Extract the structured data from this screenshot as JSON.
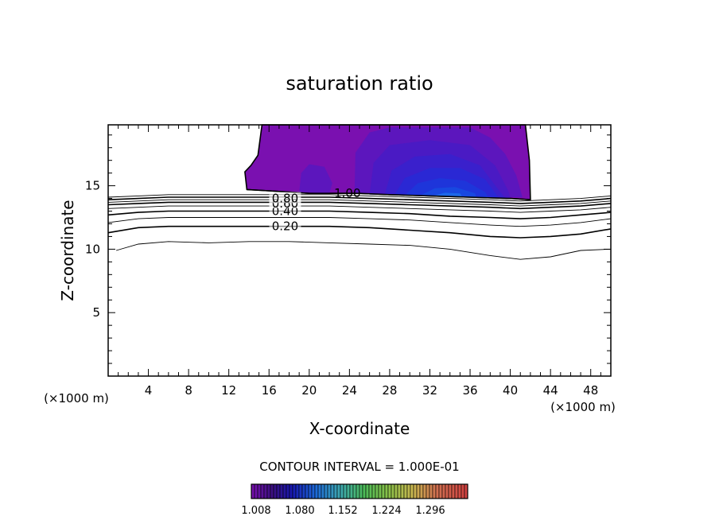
{
  "chart_data": {
    "type": "contour",
    "title": "saturation ratio",
    "xlabel": "X-coordinate",
    "ylabel": "Z-coordinate",
    "x_unit_left": "(×1000 m)",
    "x_unit_right": "(×1000 m)",
    "xlim": [
      0,
      50
    ],
    "ylim": [
      0,
      19.8
    ],
    "x_ticks": [
      4,
      8,
      12,
      16,
      20,
      24,
      28,
      32,
      36,
      40,
      44,
      48
    ],
    "y_ticks": [
      5,
      10,
      15
    ],
    "contour_interval_text": "CONTOUR INTERVAL = 1.000E-01",
    "line_contours": [
      {
        "level": 0.1,
        "label": "",
        "points": [
          [
            0.8,
            9.9
          ],
          [
            3,
            10.4
          ],
          [
            6,
            10.6
          ],
          [
            10,
            10.5
          ],
          [
            14,
            10.6
          ],
          [
            18,
            10.6
          ],
          [
            22,
            10.5
          ],
          [
            26,
            10.4
          ],
          [
            30,
            10.3
          ],
          [
            34,
            10.0
          ],
          [
            38,
            9.5
          ],
          [
            41,
            9.2
          ],
          [
            44,
            9.4
          ],
          [
            47,
            9.9
          ],
          [
            50,
            10.0
          ]
        ]
      },
      {
        "level": 0.2,
        "label": "0.20",
        "label_x": 17.6,
        "label_y": 11.8,
        "points": [
          [
            0,
            11.3
          ],
          [
            3,
            11.7
          ],
          [
            6,
            11.8
          ],
          [
            10,
            11.8
          ],
          [
            14,
            11.8
          ],
          [
            18,
            11.8
          ],
          [
            22,
            11.8
          ],
          [
            26,
            11.7
          ],
          [
            30,
            11.5
          ],
          [
            34,
            11.3
          ],
          [
            38,
            11.0
          ],
          [
            41,
            10.9
          ],
          [
            44,
            11.0
          ],
          [
            47,
            11.2
          ],
          [
            50,
            11.6
          ]
        ]
      },
      {
        "level": 0.3,
        "label": "",
        "points": [
          [
            0,
            12.1
          ],
          [
            3,
            12.4
          ],
          [
            6,
            12.5
          ],
          [
            10,
            12.5
          ],
          [
            14,
            12.5
          ],
          [
            18,
            12.5
          ],
          [
            22,
            12.5
          ],
          [
            26,
            12.4
          ],
          [
            30,
            12.3
          ],
          [
            34,
            12.1
          ],
          [
            38,
            11.9
          ],
          [
            41,
            11.8
          ],
          [
            44,
            11.9
          ],
          [
            47,
            12.1
          ],
          [
            50,
            12.4
          ]
        ]
      },
      {
        "level": 0.4,
        "label": "0.40",
        "label_x": 17.6,
        "label_y": 13.0,
        "points": [
          [
            0,
            12.7
          ],
          [
            3,
            12.9
          ],
          [
            6,
            13.0
          ],
          [
            10,
            13.0
          ],
          [
            14,
            13.0
          ],
          [
            18,
            13.0
          ],
          [
            22,
            13.0
          ],
          [
            26,
            12.9
          ],
          [
            30,
            12.8
          ],
          [
            34,
            12.6
          ],
          [
            38,
            12.5
          ],
          [
            41,
            12.4
          ],
          [
            44,
            12.5
          ],
          [
            47,
            12.7
          ],
          [
            50,
            12.9
          ]
        ]
      },
      {
        "level": 0.5,
        "label": "",
        "points": [
          [
            0,
            13.2
          ],
          [
            3,
            13.3
          ],
          [
            6,
            13.4
          ],
          [
            10,
            13.4
          ],
          [
            14,
            13.4
          ],
          [
            18,
            13.4
          ],
          [
            22,
            13.4
          ],
          [
            26,
            13.3
          ],
          [
            30,
            13.2
          ],
          [
            34,
            13.1
          ],
          [
            38,
            13.0
          ],
          [
            41,
            12.9
          ],
          [
            44,
            13.0
          ],
          [
            47,
            13.1
          ],
          [
            50,
            13.3
          ]
        ]
      },
      {
        "level": 0.6,
        "label": "0.60",
        "label_x": 17.6,
        "label_y": 13.6,
        "points": [
          [
            0,
            13.5
          ],
          [
            3,
            13.6
          ],
          [
            6,
            13.7
          ],
          [
            10,
            13.7
          ],
          [
            14,
            13.7
          ],
          [
            18,
            13.7
          ],
          [
            22,
            13.7
          ],
          [
            26,
            13.6
          ],
          [
            30,
            13.5
          ],
          [
            34,
            13.4
          ],
          [
            38,
            13.3
          ],
          [
            41,
            13.2
          ],
          [
            44,
            13.3
          ],
          [
            47,
            13.4
          ],
          [
            50,
            13.6
          ]
        ]
      },
      {
        "level": 0.7,
        "label": "",
        "points": [
          [
            0,
            13.7
          ],
          [
            3,
            13.8
          ],
          [
            6,
            13.9
          ],
          [
            10,
            13.9
          ],
          [
            14,
            13.9
          ],
          [
            18,
            13.9
          ],
          [
            22,
            13.9
          ],
          [
            26,
            13.8
          ],
          [
            30,
            13.7
          ],
          [
            34,
            13.6
          ],
          [
            38,
            13.5
          ],
          [
            41,
            13.4
          ],
          [
            44,
            13.5
          ],
          [
            47,
            13.6
          ],
          [
            50,
            13.8
          ]
        ]
      },
      {
        "level": 0.8,
        "label": "0.80",
        "label_x": 17.6,
        "label_y": 14.0,
        "points": [
          [
            0,
            13.9
          ],
          [
            3,
            14.0
          ],
          [
            6,
            14.1
          ],
          [
            10,
            14.1
          ],
          [
            14,
            14.1
          ],
          [
            18,
            14.1
          ],
          [
            22,
            14.1
          ],
          [
            26,
            14.0
          ],
          [
            30,
            13.9
          ],
          [
            34,
            13.8
          ],
          [
            38,
            13.7
          ],
          [
            41,
            13.6
          ],
          [
            44,
            13.7
          ],
          [
            47,
            13.8
          ],
          [
            50,
            14.0
          ]
        ]
      },
      {
        "level": 0.9,
        "label": "",
        "points": [
          [
            0,
            14.1
          ],
          [
            3,
            14.2
          ],
          [
            6,
            14.3
          ],
          [
            10,
            14.3
          ],
          [
            14,
            14.3
          ],
          [
            18,
            14.3
          ],
          [
            22,
            14.3
          ],
          [
            26,
            14.2
          ],
          [
            30,
            14.1
          ],
          [
            34,
            14.0
          ],
          [
            38,
            13.9
          ],
          [
            41,
            13.8
          ],
          [
            44,
            13.9
          ],
          [
            47,
            14.0
          ],
          [
            50,
            14.2
          ]
        ]
      },
      {
        "level": 1.0,
        "label": "1.00",
        "label_x": 23.8,
        "label_y": 14.4,
        "points": [
          [
            13.8,
            14.7
          ],
          [
            16,
            14.6
          ],
          [
            18,
            14.5
          ],
          [
            20,
            14.4
          ],
          [
            22,
            14.4
          ],
          [
            25,
            14.4
          ],
          [
            28,
            14.3
          ],
          [
            32,
            14.2
          ],
          [
            36,
            14.1
          ],
          [
            40,
            14.0
          ],
          [
            42,
            13.9
          ]
        ]
      }
    ],
    "filled_contours": [
      {
        "level": 1.008,
        "color": "#7a10b0",
        "points": [
          [
            13.8,
            14.7
          ],
          [
            13.6,
            16.1
          ],
          [
            14.2,
            16.6
          ],
          [
            14.9,
            17.4
          ],
          [
            15.3,
            19.8
          ],
          [
            41.5,
            19.8
          ],
          [
            41.9,
            17.0
          ],
          [
            42.0,
            13.9
          ],
          [
            40,
            14.0
          ],
          [
            36,
            14.1
          ],
          [
            32,
            14.2
          ],
          [
            28,
            14.3
          ],
          [
            25,
            14.4
          ],
          [
            22,
            14.4
          ],
          [
            20,
            14.4
          ],
          [
            18,
            14.5
          ],
          [
            16,
            14.6
          ]
        ]
      },
      {
        "level": 1.02,
        "color": "#5c16bd",
        "points": [
          [
            19.0,
            14.5
          ],
          [
            19.2,
            16.0
          ],
          [
            20.0,
            16.7
          ],
          [
            21.5,
            16.5
          ],
          [
            22.3,
            15.2
          ],
          [
            22.0,
            14.4
          ]
        ]
      },
      {
        "level": 1.02,
        "color": "#5c16bd",
        "points": [
          [
            24.5,
            14.4
          ],
          [
            24.6,
            17.6
          ],
          [
            26,
            19.2
          ],
          [
            28,
            19.6
          ],
          [
            36,
            19.6
          ],
          [
            38,
            18.8
          ],
          [
            39.5,
            17.5
          ],
          [
            40.6,
            15.8
          ],
          [
            41.2,
            14.1
          ],
          [
            36,
            14.1
          ],
          [
            32,
            14.2
          ],
          [
            28,
            14.3
          ]
        ]
      },
      {
        "level": 1.03,
        "color": "#4a1ac4",
        "points": [
          [
            26,
            14.3
          ],
          [
            26.4,
            16.8
          ],
          [
            28,
            18.2
          ],
          [
            32,
            18.6
          ],
          [
            36,
            18.2
          ],
          [
            38.5,
            16.6
          ],
          [
            39.8,
            14.6
          ],
          [
            40,
            14.0
          ],
          [
            36,
            14.1
          ],
          [
            32,
            14.2
          ],
          [
            28,
            14.3
          ]
        ]
      },
      {
        "level": 1.04,
        "color": "#3a20cc",
        "points": [
          [
            27.5,
            14.3
          ],
          [
            28.2,
            16.2
          ],
          [
            30.5,
            17.3
          ],
          [
            34,
            17.5
          ],
          [
            37,
            16.6
          ],
          [
            39,
            14.5
          ],
          [
            39.5,
            14.0
          ],
          [
            36,
            14.1
          ],
          [
            32,
            14.2
          ]
        ]
      },
      {
        "level": 1.05,
        "color": "#2a28d4",
        "points": [
          [
            28.5,
            14.3
          ],
          [
            29.5,
            15.6
          ],
          [
            32,
            16.4
          ],
          [
            35,
            16.4
          ],
          [
            37.5,
            15.5
          ],
          [
            38.8,
            14.1
          ],
          [
            36,
            14.1
          ],
          [
            32,
            14.2
          ]
        ]
      },
      {
        "level": 1.06,
        "color": "#1e35da",
        "points": [
          [
            29.5,
            14.25
          ],
          [
            30.8,
            15.2
          ],
          [
            33,
            15.6
          ],
          [
            35.5,
            15.4
          ],
          [
            37.5,
            14.5
          ],
          [
            37.8,
            14.1
          ],
          [
            36,
            14.1
          ],
          [
            32,
            14.2
          ]
        ]
      },
      {
        "level": 1.07,
        "color": "#1848e0",
        "points": [
          [
            31.0,
            14.22
          ],
          [
            32.5,
            14.8
          ],
          [
            34.5,
            14.9
          ],
          [
            36.5,
            14.4
          ],
          [
            36.6,
            14.1
          ],
          [
            34,
            14.15
          ]
        ]
      },
      {
        "level": 1.08,
        "color": "#1c68ea",
        "points": [
          [
            32.3,
            14.2
          ],
          [
            33.5,
            14.45
          ],
          [
            35,
            14.4
          ],
          [
            35.2,
            14.15
          ],
          [
            33.5,
            14.17
          ]
        ]
      }
    ],
    "colorbar": {
      "min": 0.972,
      "max": 1.332,
      "tick_labels": [
        "1.008",
        "1.080",
        "1.152",
        "1.224",
        "1.296"
      ],
      "stops": [
        {
          "value": 0.972,
          "color": "#7a10b0"
        },
        {
          "value": 1.008,
          "color": "#3a1080"
        },
        {
          "value": 1.04,
          "color": "#1818b0"
        },
        {
          "value": 1.08,
          "color": "#1d6ad8"
        },
        {
          "value": 1.12,
          "color": "#3da8b0"
        },
        {
          "value": 1.16,
          "color": "#4cba58"
        },
        {
          "value": 1.2,
          "color": "#88c048"
        },
        {
          "value": 1.24,
          "color": "#c8b850"
        },
        {
          "value": 1.28,
          "color": "#d07050"
        },
        {
          "value": 1.332,
          "color": "#d04040"
        }
      ]
    }
  }
}
